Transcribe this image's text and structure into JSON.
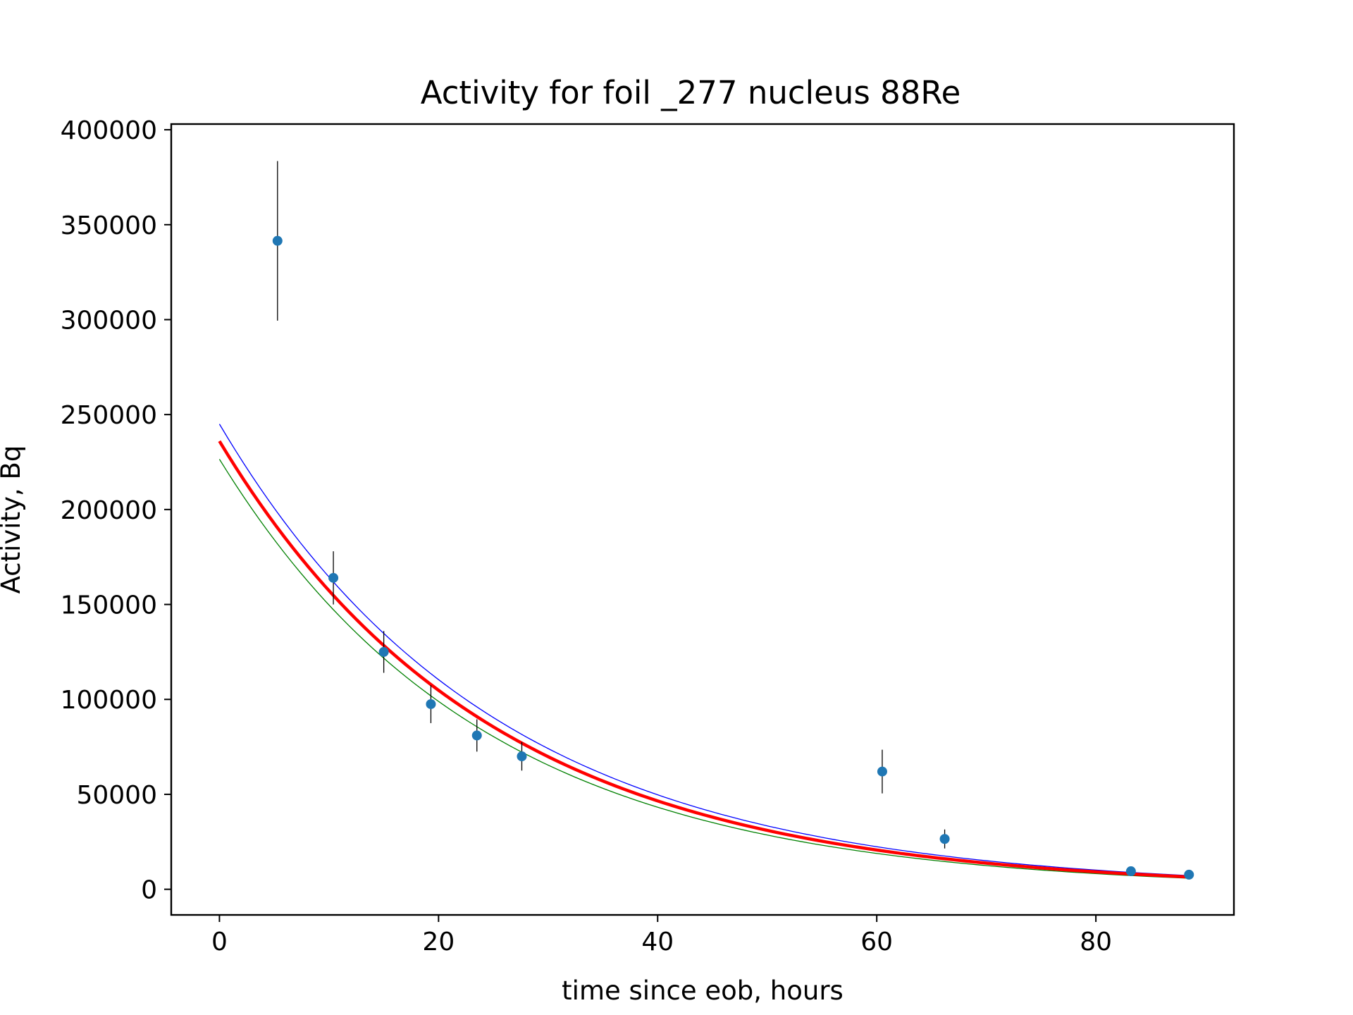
{
  "chart_data": {
    "type": "scatter",
    "title": "Activity for foil _277 nucleus 88Re",
    "xlabel": "time since eob, hours",
    "ylabel": "Activity, Bq",
    "xlim": [
      -4.4,
      92.6
    ],
    "ylim": [
      -13500,
      403000
    ],
    "xticks": [
      0,
      20,
      40,
      60,
      80
    ],
    "yticks": [
      0,
      50000,
      100000,
      150000,
      200000,
      250000,
      300000,
      350000,
      400000
    ],
    "grid": false,
    "legend": "none",
    "colors": {
      "points": "#1f77b4",
      "error_bars": "#000000",
      "fit": "#ff0000",
      "fit_upper": "#0000ff",
      "fit_lower": "#008000"
    },
    "measurements": [
      {
        "x": 5.3,
        "y": 341500,
        "err": 42000
      },
      {
        "x": 10.4,
        "y": 164000,
        "err": 14000
      },
      {
        "x": 15.0,
        "y": 125000,
        "err": 11000
      },
      {
        "x": 19.3,
        "y": 97500,
        "err": 10000
      },
      {
        "x": 23.5,
        "y": 81000,
        "err": 8500
      },
      {
        "x": 27.6,
        "y": 70000,
        "err": 7500
      },
      {
        "x": 60.5,
        "y": 62000,
        "err": 11500
      },
      {
        "x": 66.2,
        "y": 26500,
        "err": 5000
      },
      {
        "x": 83.2,
        "y": 9500,
        "err": 1500
      },
      {
        "x": 88.5,
        "y": 7700,
        "err": 1200
      }
    ],
    "fit_curves": [
      {
        "role": "fit",
        "A0": 236000,
        "x_start": 0,
        "x_end": 88.5,
        "y_end": 6500
      },
      {
        "role": "fit_upper",
        "A0": 245000,
        "x_start": 0,
        "x_end": 88.5,
        "y_end": 7200
      },
      {
        "role": "fit_lower",
        "A0": 226500,
        "x_start": 0,
        "x_end": 88.5,
        "y_end": 5800
      }
    ]
  }
}
